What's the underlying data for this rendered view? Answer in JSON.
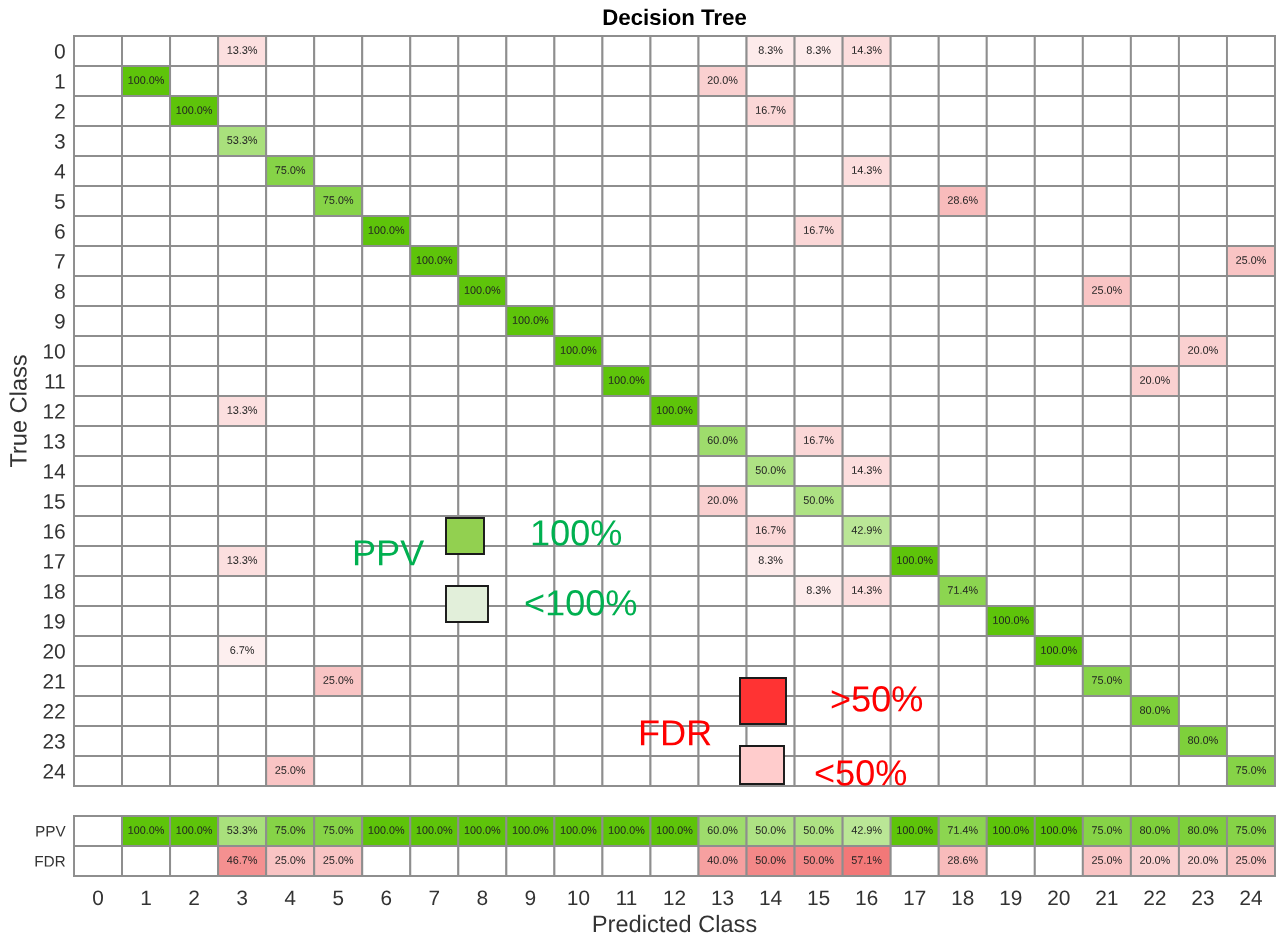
{
  "chart_data": [
    {
      "type": "heatmap",
      "title": "Decision Tree",
      "ylabel": "True Class",
      "tick_labels": "y",
      "categories": [
        "0",
        "1",
        "2",
        "3",
        "4",
        "5",
        "6",
        "7",
        "8",
        "9",
        "10",
        "11",
        "12",
        "13",
        "14",
        "15",
        "16",
        "17",
        "18",
        "19",
        "20",
        "21",
        "22",
        "23",
        "24"
      ],
      "y_categories": [
        "0",
        "1",
        "2",
        "3",
        "4",
        "5",
        "6",
        "7",
        "8",
        "9",
        "10",
        "11",
        "12",
        "13",
        "14",
        "15",
        "16",
        "17",
        "18",
        "19",
        "20",
        "21",
        "22",
        "23",
        "24"
      ],
      "cells": [
        [
          null,
          null,
          null,
          13.3,
          null,
          null,
          null,
          null,
          null,
          null,
          null,
          null,
          null,
          null,
          8.3,
          8.3,
          14.3,
          null,
          null,
          null,
          null,
          null,
          null,
          null,
          null
        ],
        [
          null,
          100,
          null,
          null,
          null,
          null,
          null,
          null,
          null,
          null,
          null,
          null,
          null,
          20,
          null,
          null,
          null,
          null,
          null,
          null,
          null,
          null,
          null,
          null,
          null
        ],
        [
          null,
          null,
          100,
          null,
          null,
          null,
          null,
          null,
          null,
          null,
          null,
          null,
          null,
          null,
          16.7,
          null,
          null,
          null,
          null,
          null,
          null,
          null,
          null,
          null,
          null
        ],
        [
          null,
          null,
          null,
          53.3,
          null,
          null,
          null,
          null,
          null,
          null,
          null,
          null,
          null,
          null,
          null,
          null,
          null,
          null,
          null,
          null,
          null,
          null,
          null,
          null,
          null
        ],
        [
          null,
          null,
          null,
          null,
          75,
          null,
          null,
          null,
          null,
          null,
          null,
          null,
          null,
          null,
          null,
          null,
          14.3,
          null,
          null,
          null,
          null,
          null,
          null,
          null,
          null
        ],
        [
          null,
          null,
          null,
          null,
          null,
          75,
          null,
          null,
          null,
          null,
          null,
          null,
          null,
          null,
          null,
          null,
          null,
          null,
          28.6,
          null,
          null,
          null,
          null,
          null,
          null
        ],
        [
          null,
          null,
          null,
          null,
          null,
          null,
          100,
          null,
          null,
          null,
          null,
          null,
          null,
          null,
          null,
          16.7,
          null,
          null,
          null,
          null,
          null,
          null,
          null,
          null,
          null
        ],
        [
          null,
          null,
          null,
          null,
          null,
          null,
          null,
          100,
          null,
          null,
          null,
          null,
          null,
          null,
          null,
          null,
          null,
          null,
          null,
          null,
          null,
          null,
          null,
          null,
          25
        ],
        [
          null,
          null,
          null,
          null,
          null,
          null,
          null,
          null,
          100,
          null,
          null,
          null,
          null,
          null,
          null,
          null,
          null,
          null,
          null,
          null,
          null,
          25,
          null,
          null,
          null
        ],
        [
          null,
          null,
          null,
          null,
          null,
          null,
          null,
          null,
          null,
          100,
          null,
          null,
          null,
          null,
          null,
          null,
          null,
          null,
          null,
          null,
          null,
          null,
          null,
          null,
          null
        ],
        [
          null,
          null,
          null,
          null,
          null,
          null,
          null,
          null,
          null,
          null,
          100,
          null,
          null,
          null,
          null,
          null,
          null,
          null,
          null,
          null,
          null,
          null,
          null,
          20,
          null
        ],
        [
          null,
          null,
          null,
          null,
          null,
          null,
          null,
          null,
          null,
          null,
          null,
          100,
          null,
          null,
          null,
          null,
          null,
          null,
          null,
          null,
          null,
          null,
          20,
          null,
          null
        ],
        [
          null,
          null,
          null,
          13.3,
          null,
          null,
          null,
          null,
          null,
          null,
          null,
          null,
          100,
          null,
          null,
          null,
          null,
          null,
          null,
          null,
          null,
          null,
          null,
          null,
          null
        ],
        [
          null,
          null,
          null,
          null,
          null,
          null,
          null,
          null,
          null,
          null,
          null,
          null,
          null,
          60,
          null,
          16.7,
          null,
          null,
          null,
          null,
          null,
          null,
          null,
          null,
          null
        ],
        [
          null,
          null,
          null,
          null,
          null,
          null,
          null,
          null,
          null,
          null,
          null,
          null,
          null,
          null,
          50,
          null,
          14.3,
          null,
          null,
          null,
          null,
          null,
          null,
          null,
          null
        ],
        [
          null,
          null,
          null,
          null,
          null,
          null,
          null,
          null,
          null,
          null,
          null,
          null,
          null,
          20,
          null,
          50,
          null,
          null,
          null,
          null,
          null,
          null,
          null,
          null,
          null
        ],
        [
          null,
          null,
          null,
          null,
          null,
          null,
          null,
          null,
          null,
          null,
          null,
          null,
          null,
          null,
          16.7,
          null,
          42.9,
          null,
          null,
          null,
          null,
          null,
          null,
          null,
          null
        ],
        [
          null,
          null,
          null,
          13.3,
          null,
          null,
          null,
          null,
          null,
          null,
          null,
          null,
          null,
          null,
          8.3,
          null,
          null,
          100,
          null,
          null,
          null,
          null,
          null,
          null,
          null
        ],
        [
          null,
          null,
          null,
          null,
          null,
          null,
          null,
          null,
          null,
          null,
          null,
          null,
          null,
          null,
          null,
          8.3,
          14.3,
          null,
          71.4,
          null,
          null,
          null,
          null,
          null,
          null
        ],
        [
          null,
          null,
          null,
          null,
          null,
          null,
          null,
          null,
          null,
          null,
          null,
          null,
          null,
          null,
          null,
          null,
          null,
          null,
          null,
          100,
          null,
          null,
          null,
          null,
          null
        ],
        [
          null,
          null,
          null,
          6.7,
          null,
          null,
          null,
          null,
          null,
          null,
          null,
          null,
          null,
          null,
          null,
          null,
          null,
          null,
          null,
          null,
          100,
          null,
          null,
          null,
          null
        ],
        [
          null,
          null,
          null,
          null,
          null,
          25,
          null,
          null,
          null,
          null,
          null,
          null,
          null,
          null,
          null,
          null,
          null,
          null,
          null,
          null,
          null,
          75,
          null,
          null,
          null
        ],
        [
          null,
          null,
          null,
          null,
          null,
          null,
          null,
          null,
          null,
          null,
          null,
          null,
          null,
          null,
          null,
          null,
          null,
          null,
          null,
          null,
          null,
          null,
          80,
          null,
          null
        ],
        [
          null,
          null,
          null,
          null,
          null,
          null,
          null,
          null,
          null,
          null,
          null,
          null,
          null,
          null,
          null,
          null,
          null,
          null,
          null,
          null,
          null,
          null,
          null,
          80,
          null
        ],
        [
          null,
          null,
          null,
          null,
          25,
          null,
          null,
          null,
          null,
          null,
          null,
          null,
          null,
          null,
          null,
          null,
          null,
          null,
          null,
          null,
          null,
          null,
          null,
          null,
          75
        ]
      ],
      "cell_labels": [
        [
          null,
          null,
          null,
          "13.3%",
          null,
          null,
          null,
          null,
          null,
          null,
          null,
          null,
          null,
          null,
          "8.3%",
          "8.3%",
          "14.3%",
          null,
          null,
          null,
          null,
          null,
          null,
          null,
          null
        ],
        [
          null,
          "100.0%",
          null,
          null,
          null,
          null,
          null,
          null,
          null,
          null,
          null,
          null,
          null,
          "20.0%",
          null,
          null,
          null,
          null,
          null,
          null,
          null,
          null,
          null,
          null,
          null
        ],
        [
          null,
          null,
          "100.0%",
          null,
          null,
          null,
          null,
          null,
          null,
          null,
          null,
          null,
          null,
          null,
          "16.7%",
          null,
          null,
          null,
          null,
          null,
          null,
          null,
          null,
          null,
          null
        ],
        [
          null,
          null,
          null,
          "53.3%",
          null,
          null,
          null,
          null,
          null,
          null,
          null,
          null,
          null,
          null,
          null,
          null,
          null,
          null,
          null,
          null,
          null,
          null,
          null,
          null,
          null
        ],
        [
          null,
          null,
          null,
          null,
          "75.0%",
          null,
          null,
          null,
          null,
          null,
          null,
          null,
          null,
          null,
          null,
          null,
          "14.3%",
          null,
          null,
          null,
          null,
          null,
          null,
          null,
          null
        ],
        [
          null,
          null,
          null,
          null,
          null,
          "75.0%",
          null,
          null,
          null,
          null,
          null,
          null,
          null,
          null,
          null,
          null,
          null,
          null,
          "28.6%",
          null,
          null,
          null,
          null,
          null,
          null
        ],
        [
          null,
          null,
          null,
          null,
          null,
          null,
          "100.0%",
          null,
          null,
          null,
          null,
          null,
          null,
          null,
          null,
          "16.7%",
          null,
          null,
          null,
          null,
          null,
          null,
          null,
          null,
          null
        ],
        [
          null,
          null,
          null,
          null,
          null,
          null,
          null,
          "100.0%",
          null,
          null,
          null,
          null,
          null,
          null,
          null,
          null,
          null,
          null,
          null,
          null,
          null,
          null,
          null,
          null,
          "25.0%"
        ],
        [
          null,
          null,
          null,
          null,
          null,
          null,
          null,
          null,
          "100.0%",
          null,
          null,
          null,
          null,
          null,
          null,
          null,
          null,
          null,
          null,
          null,
          null,
          "25.0%",
          null,
          null,
          null
        ],
        [
          null,
          null,
          null,
          null,
          null,
          null,
          null,
          null,
          null,
          "100.0%",
          null,
          null,
          null,
          null,
          null,
          null,
          null,
          null,
          null,
          null,
          null,
          null,
          null,
          null,
          null
        ],
        [
          null,
          null,
          null,
          null,
          null,
          null,
          null,
          null,
          null,
          null,
          "100.0%",
          null,
          null,
          null,
          null,
          null,
          null,
          null,
          null,
          null,
          null,
          null,
          null,
          "20.0%",
          null
        ],
        [
          null,
          null,
          null,
          null,
          null,
          null,
          null,
          null,
          null,
          null,
          null,
          "100.0%",
          null,
          null,
          null,
          null,
          null,
          null,
          null,
          null,
          null,
          null,
          "20.0%",
          null,
          null
        ],
        [
          null,
          null,
          null,
          "13.3%",
          null,
          null,
          null,
          null,
          null,
          null,
          null,
          null,
          "100.0%",
          null,
          null,
          null,
          null,
          null,
          null,
          null,
          null,
          null,
          null,
          null,
          null
        ],
        [
          null,
          null,
          null,
          null,
          null,
          null,
          null,
          null,
          null,
          null,
          null,
          null,
          null,
          "60.0%",
          null,
          "16.7%",
          null,
          null,
          null,
          null,
          null,
          null,
          null,
          null,
          null
        ],
        [
          null,
          null,
          null,
          null,
          null,
          null,
          null,
          null,
          null,
          null,
          null,
          null,
          null,
          null,
          "50.0%",
          null,
          "14.3%",
          null,
          null,
          null,
          null,
          null,
          null,
          null,
          null
        ],
        [
          null,
          null,
          null,
          null,
          null,
          null,
          null,
          null,
          null,
          null,
          null,
          null,
          null,
          "20.0%",
          null,
          "50.0%",
          null,
          null,
          null,
          null,
          null,
          null,
          null,
          null,
          null
        ],
        [
          null,
          null,
          null,
          null,
          null,
          null,
          null,
          null,
          null,
          null,
          null,
          null,
          null,
          null,
          "16.7%",
          null,
          "42.9%",
          null,
          null,
          null,
          null,
          null,
          null,
          null,
          null
        ],
        [
          null,
          null,
          null,
          "13.3%",
          null,
          null,
          null,
          null,
          null,
          null,
          null,
          null,
          null,
          null,
          "8.3%",
          null,
          null,
          "100.0%",
          null,
          null,
          null,
          null,
          null,
          null,
          null
        ],
        [
          null,
          null,
          null,
          null,
          null,
          null,
          null,
          null,
          null,
          null,
          null,
          null,
          null,
          null,
          null,
          "8.3%",
          "14.3%",
          null,
          "71.4%",
          null,
          null,
          null,
          null,
          null,
          null
        ],
        [
          null,
          null,
          null,
          null,
          null,
          null,
          null,
          null,
          null,
          null,
          null,
          null,
          null,
          null,
          null,
          null,
          null,
          null,
          null,
          "100.0%",
          null,
          null,
          null,
          null,
          null
        ],
        [
          null,
          null,
          null,
          "6.7%",
          null,
          null,
          null,
          null,
          null,
          null,
          null,
          null,
          null,
          null,
          null,
          null,
          null,
          null,
          null,
          null,
          "100.0%",
          null,
          null,
          null,
          null
        ],
        [
          null,
          null,
          null,
          null,
          null,
          "25.0%",
          null,
          null,
          null,
          null,
          null,
          null,
          null,
          null,
          null,
          null,
          null,
          null,
          null,
          null,
          null,
          "75.0%",
          null,
          null,
          null
        ],
        [
          null,
          null,
          null,
          null,
          null,
          null,
          null,
          null,
          null,
          null,
          null,
          null,
          null,
          null,
          null,
          null,
          null,
          null,
          null,
          null,
          null,
          null,
          "80.0%",
          null,
          null
        ],
        [
          null,
          null,
          null,
          null,
          null,
          null,
          null,
          null,
          null,
          null,
          null,
          null,
          null,
          null,
          null,
          null,
          null,
          null,
          null,
          null,
          null,
          null,
          null,
          "80.0%",
          null
        ],
        [
          null,
          null,
          null,
          null,
          "25.0%",
          null,
          null,
          null,
          null,
          null,
          null,
          null,
          null,
          null,
          null,
          null,
          null,
          null,
          null,
          null,
          null,
          null,
          null,
          null,
          "75.0%"
        ]
      ],
      "annotations": [
        "PPV",
        "100%",
        "<100%",
        "FDR",
        ">50%",
        "<50%"
      ]
    },
    {
      "type": "heatmap",
      "xlabel": "Predicted Class",
      "categories": [
        "0",
        "1",
        "2",
        "3",
        "4",
        "5",
        "6",
        "7",
        "8",
        "9",
        "10",
        "11",
        "12",
        "13",
        "14",
        "15",
        "16",
        "17",
        "18",
        "19",
        "20",
        "21",
        "22",
        "23",
        "24"
      ],
      "y_categories": [
        "PPV",
        "FDR"
      ],
      "cells": [
        [
          null,
          100,
          100,
          53.3,
          75,
          75,
          100,
          100,
          100,
          100,
          100,
          100,
          100,
          60,
          50,
          50,
          42.9,
          100,
          71.4,
          100,
          100,
          75,
          80,
          80,
          75
        ],
        [
          null,
          null,
          null,
          46.7,
          25,
          25,
          null,
          null,
          null,
          null,
          null,
          null,
          null,
          40,
          50,
          50,
          57.1,
          null,
          28.6,
          null,
          null,
          25,
          20,
          20,
          25
        ]
      ],
      "cell_labels": [
        [
          null,
          "100.0%",
          "100.0%",
          "53.3%",
          "75.0%",
          "75.0%",
          "100.0%",
          "100.0%",
          "100.0%",
          "100.0%",
          "100.0%",
          "100.0%",
          "100.0%",
          "60.0%",
          "50.0%",
          "50.0%",
          "42.9%",
          "100.0%",
          "71.4%",
          "100.0%",
          "100.0%",
          "75.0%",
          "80.0%",
          "80.0%",
          "75.0%"
        ],
        [
          null,
          null,
          null,
          "46.7%",
          "25.0%",
          "25.0%",
          null,
          null,
          null,
          null,
          null,
          null,
          null,
          "40.0%",
          "50.0%",
          "50.0%",
          "57.1%",
          null,
          "28.6%",
          null,
          null,
          "25.0%",
          "20.0%",
          "20.0%",
          "25.0%"
        ]
      ]
    }
  ]
}
